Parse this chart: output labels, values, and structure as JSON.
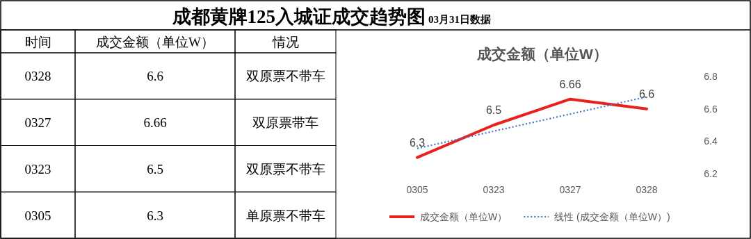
{
  "chart_data": [
    {
      "type": "other",
      "title": "成都黄牌125入城证成交趋势图",
      "subtitle": "03月31日数据",
      "annotations": [
        "时间",
        "成交金额（单位W）",
        "情况",
        "0328",
        "6.6",
        "双原票不带车",
        "0327",
        "6.66",
        "双原票带车",
        "0323",
        "6.5",
        "双原票不带车",
        "0305",
        "6.3",
        "单原票不带车"
      ]
    },
    {
      "type": "line",
      "title": "成交金额（单位W）",
      "categories": [
        "0305",
        "0323",
        "0327",
        "0328"
      ],
      "ylim": [
        6.2,
        6.8
      ],
      "yticks": [
        6.2,
        6.4,
        6.6,
        6.8
      ],
      "legend": "bottom",
      "series": [
        {
          "name": "成交金额（单位W）",
          "color": "#e8221b",
          "values": [
            6.3,
            6.5,
            6.66,
            6.6
          ],
          "value_labels": [
            "6.3",
            "6.5",
            "6.66",
            "6.6"
          ]
        },
        {
          "name": "线性 (成交金额（单位W）)",
          "color": "#4472c4",
          "line_style": "dotted",
          "values": [
            6.356,
            6.462,
            6.568,
            6.674
          ]
        }
      ]
    }
  ]
}
